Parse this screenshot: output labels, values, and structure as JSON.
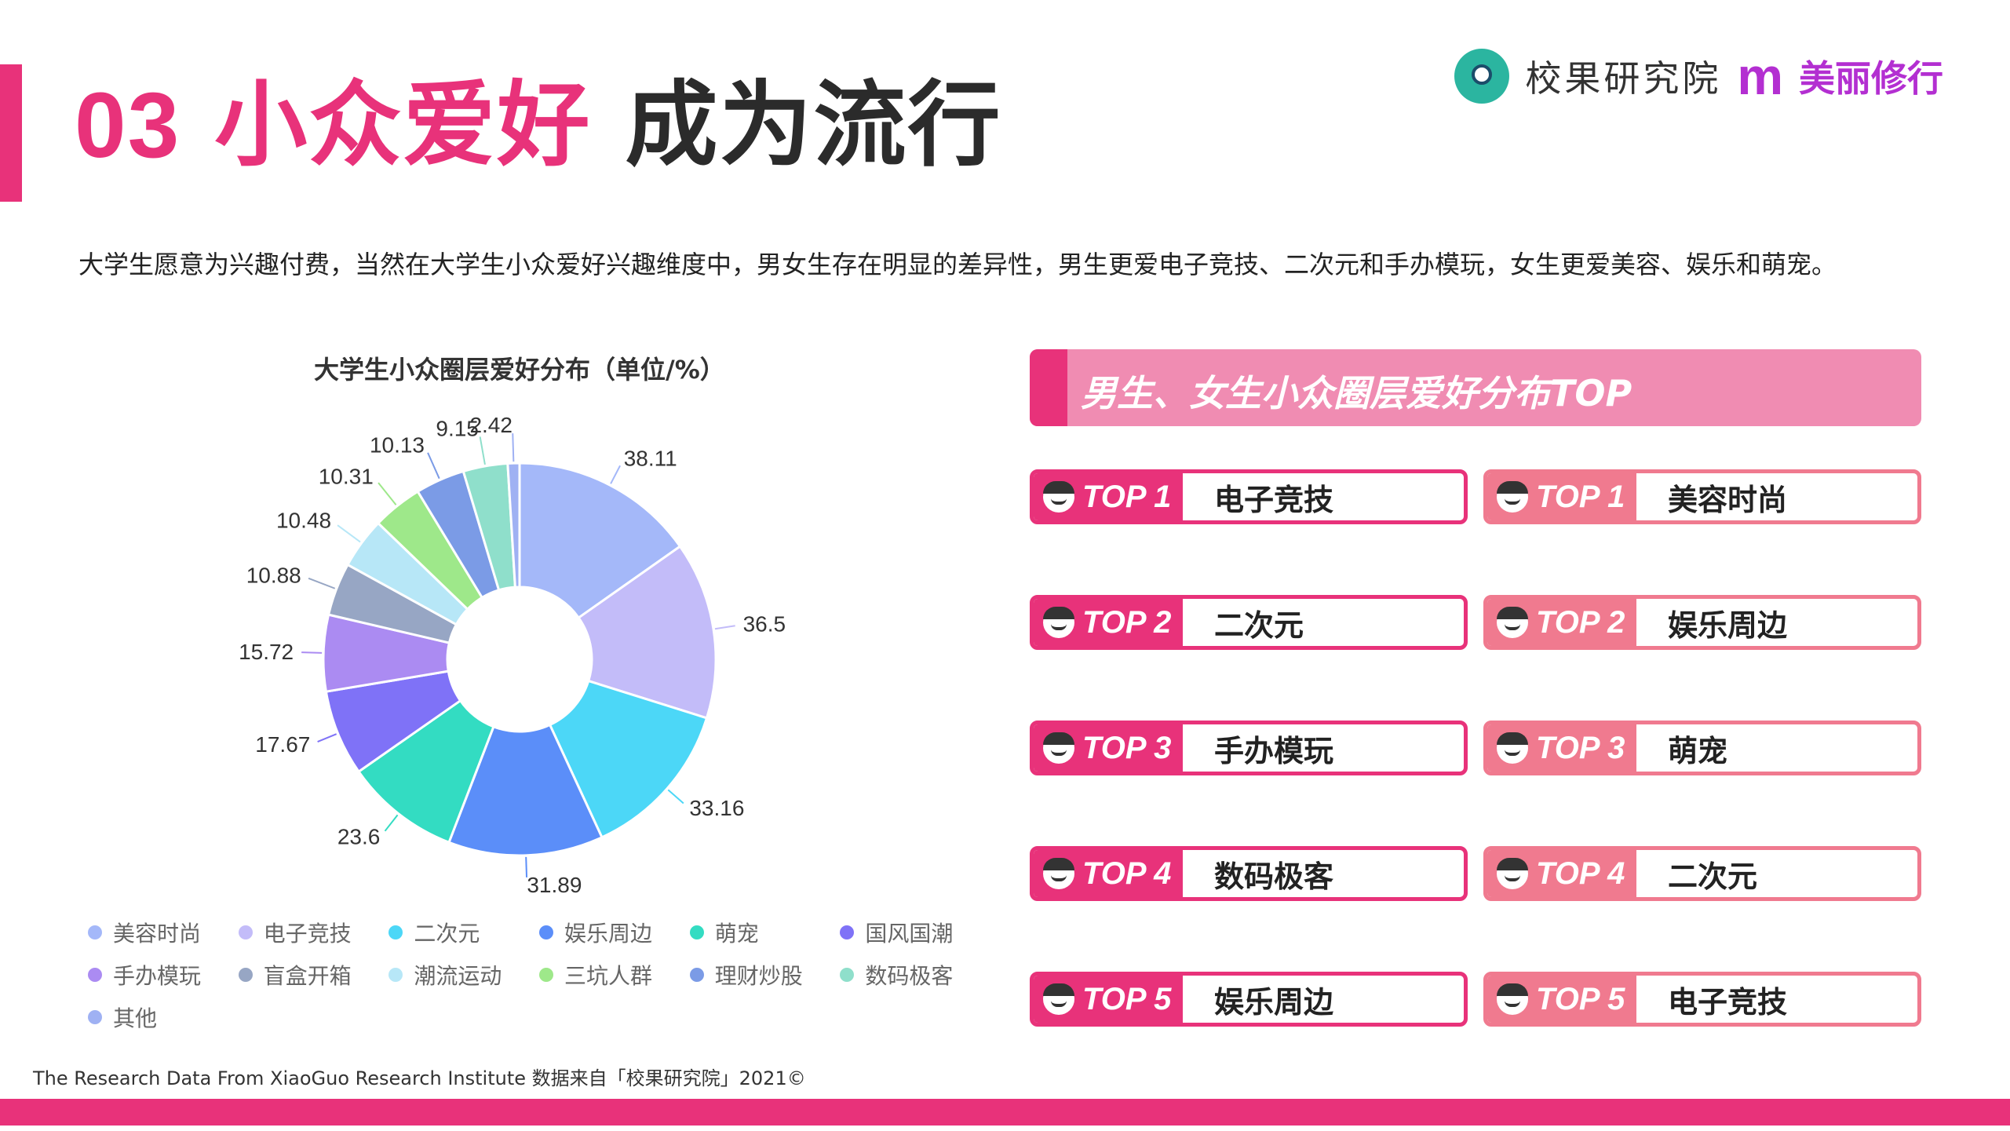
{
  "header": {
    "title_num": "03",
    "title_pink": "小众爱好",
    "title_dark": "成为流行"
  },
  "logo": {
    "icon": "xiaoguo-logo-icon",
    "name": "校果研究院",
    "brand_mark": "m",
    "brand_name": "美丽修行"
  },
  "description": "大学生愿意为兴趣付费，当然在大学生小众爱好兴趣维度中，男女生存在明显的差异性，男生更爱电子竞技、二次元和手办模玩，女生更爱美容、娱乐和萌宠。",
  "chart_data": {
    "type": "pie",
    "donut": true,
    "title": "大学生小众圈层爱好分布（单位/%）",
    "categories": [
      "美容时尚",
      "电子竞技",
      "二次元",
      "娱乐周边",
      "萌宠",
      "国风国潮",
      "手办模玩",
      "盲盒开箱",
      "潮流运动",
      "三坑人群",
      "理财炒股",
      "数码极客",
      "其他"
    ],
    "values": [
      38.11,
      36.5,
      33.16,
      31.89,
      23.6,
      17.67,
      15.72,
      10.88,
      10.48,
      10.31,
      10.13,
      9.15,
      2.42
    ],
    "labels": [
      "38.11",
      "36.5",
      "33.16",
      "31.89",
      "23.6",
      "17.67",
      "15.72",
      "10.88",
      "10.48",
      "10.31",
      "10.13",
      "9.15",
      "2.42"
    ],
    "colors": [
      "#a4b8f9",
      "#c3bcf9",
      "#4cd7f7",
      "#5b8ef9",
      "#33dcc2",
      "#7f72f7",
      "#ab8bf2",
      "#97a6c4",
      "#b7e7f7",
      "#9ee88a",
      "#7b9be6",
      "#8fdfcb",
      "#9fb1f3"
    ],
    "legend_position": "bottom"
  },
  "ranking": {
    "banner_title": "男生、女生小众圈层爱好分布TOP",
    "male": [
      {
        "tag": "TOP 1",
        "name": "电子竞技"
      },
      {
        "tag": "TOP 2",
        "name": "二次元"
      },
      {
        "tag": "TOP 3",
        "name": "手办模玩"
      },
      {
        "tag": "TOP 4",
        "name": "数码极客"
      },
      {
        "tag": "TOP 5",
        "name": "娱乐周边"
      }
    ],
    "female": [
      {
        "tag": "TOP 1",
        "name": "美容时尚"
      },
      {
        "tag": "TOP 2",
        "name": "娱乐周边"
      },
      {
        "tag": "TOP 3",
        "name": "萌宠"
      },
      {
        "tag": "TOP 4",
        "name": "二次元"
      },
      {
        "tag": "TOP 5",
        "name": "电子竞技"
      }
    ]
  },
  "footer": {
    "text": "The Research Data From XiaoGuo Research Institute 数据来自「校果研究院」2021©"
  }
}
